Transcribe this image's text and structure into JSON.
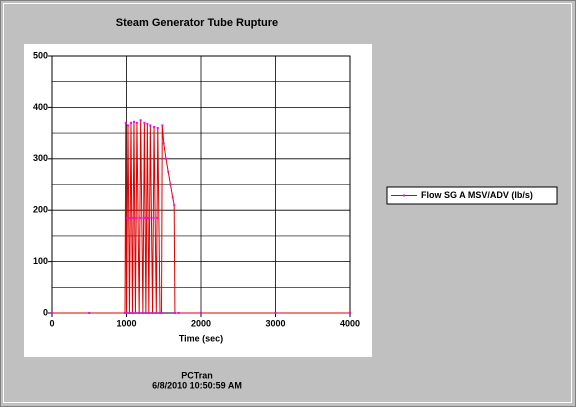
{
  "chart_data": {
    "type": "line",
    "title": "Steam Generator Tube Rupture",
    "xlabel": "Time (sec)",
    "footer": [
      "PCTran",
      "6/8/2010 10:50:59 AM"
    ],
    "x": [
      0,
      500,
      980,
      990,
      1000,
      1010,
      1020,
      1040,
      1050,
      1060,
      1080,
      1090,
      1100,
      1120,
      1130,
      1140,
      1170,
      1180,
      1190,
      1220,
      1230,
      1240,
      1260,
      1270,
      1280,
      1300,
      1310,
      1320,
      1350,
      1360,
      1370,
      1400,
      1410,
      1420,
      1450,
      1470,
      1480,
      1500,
      1530,
      1560,
      1590,
      1620,
      1640,
      1650,
      1700,
      2000,
      3000,
      4000
    ],
    "series": [
      {
        "name": "Flow SG A MSV/ADV (lb/s)",
        "color": "#e00000",
        "marker_color": "#ff00ff",
        "values": [
          0,
          0,
          0,
          370,
          0,
          185,
          365,
          0,
          185,
          370,
          0,
          185,
          372,
          0,
          185,
          370,
          0,
          185,
          375,
          0,
          185,
          370,
          0,
          185,
          368,
          0,
          185,
          365,
          0,
          185,
          362,
          0,
          185,
          360,
          0,
          0,
          365,
          330,
          300,
          275,
          250,
          225,
          210,
          0,
          0,
          0,
          0,
          0
        ]
      }
    ],
    "xlim": [
      0,
      4000
    ],
    "xticks": [
      0,
      1000,
      2000,
      3000,
      4000
    ],
    "ylim": [
      0,
      500
    ],
    "yticks": [
      0,
      100,
      200,
      300,
      400,
      500
    ],
    "yminor": [
      50,
      150,
      250,
      350,
      450
    ],
    "grid": true,
    "legend": "right"
  }
}
